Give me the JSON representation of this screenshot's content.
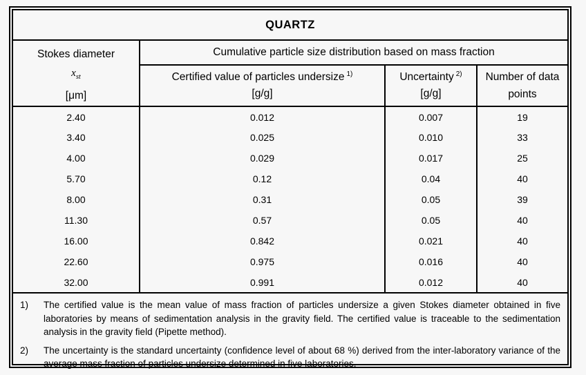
{
  "title": "QUARTZ",
  "columns": {
    "stokes": {
      "title": "Stokes diameter",
      "symbol": "x",
      "symbol_subscript": "st",
      "unit": "[μm]"
    },
    "group_header": "Cumulative particle size distribution based on mass fraction",
    "certified": {
      "label": "Certified value of particles undersize",
      "footnote_ref": "1)",
      "unit": "[g/g]"
    },
    "uncertainty": {
      "label": "Uncertainty",
      "footnote_ref": "2)",
      "unit": "[g/g]"
    },
    "data_points": {
      "label": "Number of data points"
    }
  },
  "rows": [
    {
      "stokes_diameter": "2.40",
      "certified_value": "0.012",
      "uncertainty": "0.007",
      "data_points": "19"
    },
    {
      "stokes_diameter": "3.40",
      "certified_value": "0.025",
      "uncertainty": "0.010",
      "data_points": "33"
    },
    {
      "stokes_diameter": "4.00",
      "certified_value": "0.029",
      "uncertainty": "0.017",
      "data_points": "25"
    },
    {
      "stokes_diameter": "5.70",
      "certified_value": "0.12",
      "uncertainty": "0.04",
      "data_points": "40"
    },
    {
      "stokes_diameter": "8.00",
      "certified_value": "0.31",
      "uncertainty": "0.05",
      "data_points": "39"
    },
    {
      "stokes_diameter": "11.30",
      "certified_value": "0.57",
      "uncertainty": "0.05",
      "data_points": "40"
    },
    {
      "stokes_diameter": "16.00",
      "certified_value": "0.842",
      "uncertainty": "0.021",
      "data_points": "40"
    },
    {
      "stokes_diameter": "22.60",
      "certified_value": "0.975",
      "uncertainty": "0.016",
      "data_points": "40"
    },
    {
      "stokes_diameter": "32.00",
      "certified_value": "0.991",
      "uncertainty": "0.012",
      "data_points": "40"
    }
  ],
  "footnotes": [
    {
      "marker": "1)",
      "text": "The certified value is the mean value of mass fraction of particles undersize a given Stokes diameter obtained in five laboratories by means of sedimentation analysis in the gravity field. The certified value is traceable to the sedimentation analysis in the gravity field (Pipette method)."
    },
    {
      "marker": "2)",
      "text": "The uncertainty is the standard uncertainty (confidence level of about 68 %) derived from the inter-laboratory variance of the average mass fraction of particles undersize determined in five laboratories."
    }
  ],
  "colors": {
    "background": "#f7f7f7",
    "border": "#000000",
    "text": "#000000"
  }
}
